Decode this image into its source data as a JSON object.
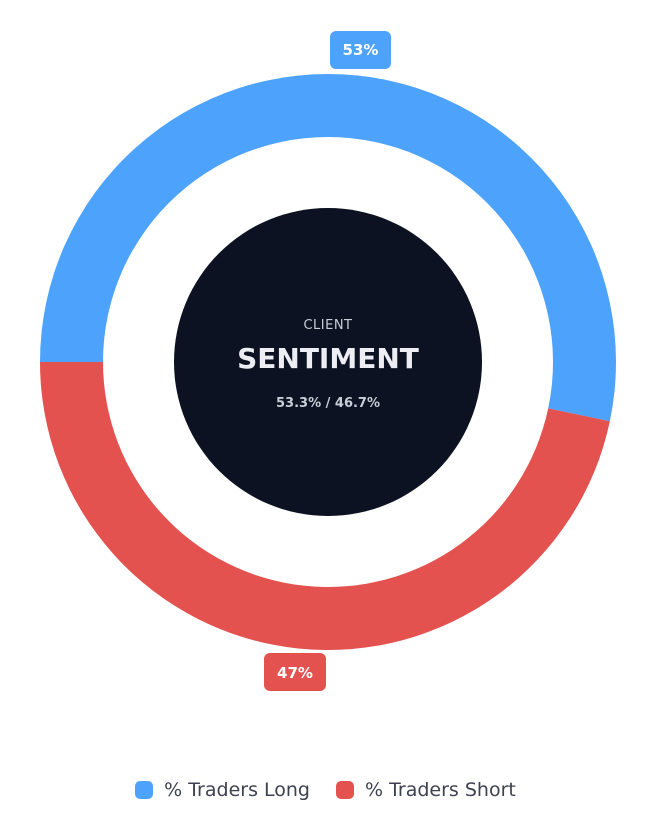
{
  "chart_data": {
    "type": "pie",
    "series": [
      {
        "name": "% Traders Long",
        "value": 53.3,
        "label": "53%",
        "color": "#4da3fc"
      },
      {
        "name": "% Traders Short",
        "value": 46.7,
        "label": "47%",
        "color": "#e4524f"
      }
    ],
    "center": {
      "kicker": "CLIENT",
      "title": "SENTIMENT",
      "ratio": "53.3% / 46.7%",
      "color": "#0c1221"
    }
  }
}
